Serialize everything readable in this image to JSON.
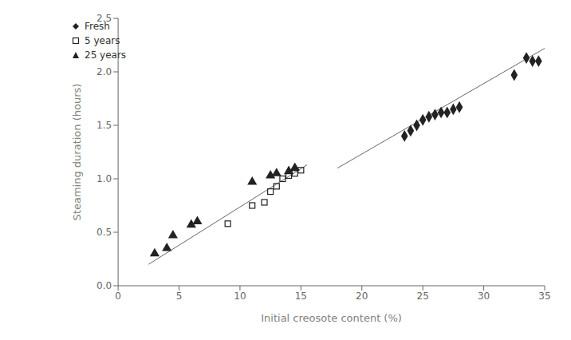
{
  "chart_data": {
    "type": "scatter",
    "title": "",
    "xlabel": "Initial creosote content (%)",
    "ylabel": "Steaming duration (hours)",
    "xlim": [
      0,
      35
    ],
    "ylim": [
      0,
      2.5
    ],
    "xticks": [
      0,
      5,
      10,
      15,
      20,
      25,
      30,
      35
    ],
    "yticks": [
      {
        "value": 0,
        "label": "0.0"
      },
      0.5,
      {
        "value": 1.0,
        "label": "1.0"
      },
      1.5,
      {
        "value": 2.0,
        "label": "2.0"
      },
      2.5
    ],
    "grid": false,
    "legend": "upper left",
    "series": [
      {
        "type": "line",
        "color": "#666666",
        "x": [
          18.0,
          35.0
        ],
        "values": [
          1.1,
          2.22
        ]
      },
      {
        "type": "line",
        "color": "#666666",
        "x": [
          2.5,
          15.5
        ],
        "values": [
          0.2,
          1.13
        ]
      },
      {
        "name": "Fresh",
        "type": "scatter",
        "marker": "diamond",
        "color": "#222222",
        "x": [
          23.5,
          24.0,
          24.5,
          25.0,
          25.5,
          26.0,
          26.5,
          27.0,
          27.5,
          28.0,
          32.5,
          33.5,
          34.0,
          34.5
        ],
        "values": [
          1.4,
          1.45,
          1.5,
          1.55,
          1.58,
          1.6,
          1.62,
          1.62,
          1.65,
          1.67,
          1.97,
          2.13,
          2.1,
          2.1
        ]
      },
      {
        "name": "5 years",
        "type": "scatter",
        "marker": "open_square",
        "color": "#222222",
        "x": [
          9.0,
          11.0,
          12.0,
          12.5,
          13.0,
          13.5,
          14.0,
          14.5,
          15.0
        ],
        "values": [
          0.58,
          0.75,
          0.78,
          0.88,
          0.93,
          1.0,
          1.03,
          1.05,
          1.08
        ]
      },
      {
        "name": "25 years",
        "type": "scatter",
        "marker": "triangle",
        "color": "#222222",
        "x": [
          3.0,
          4.0,
          4.5,
          6.0,
          6.5,
          11.0,
          12.5,
          13.0,
          14.0,
          14.5
        ],
        "values": [
          0.3,
          0.35,
          0.47,
          0.57,
          0.6,
          0.97,
          1.03,
          1.05,
          1.07,
          1.1
        ]
      }
    ]
  }
}
